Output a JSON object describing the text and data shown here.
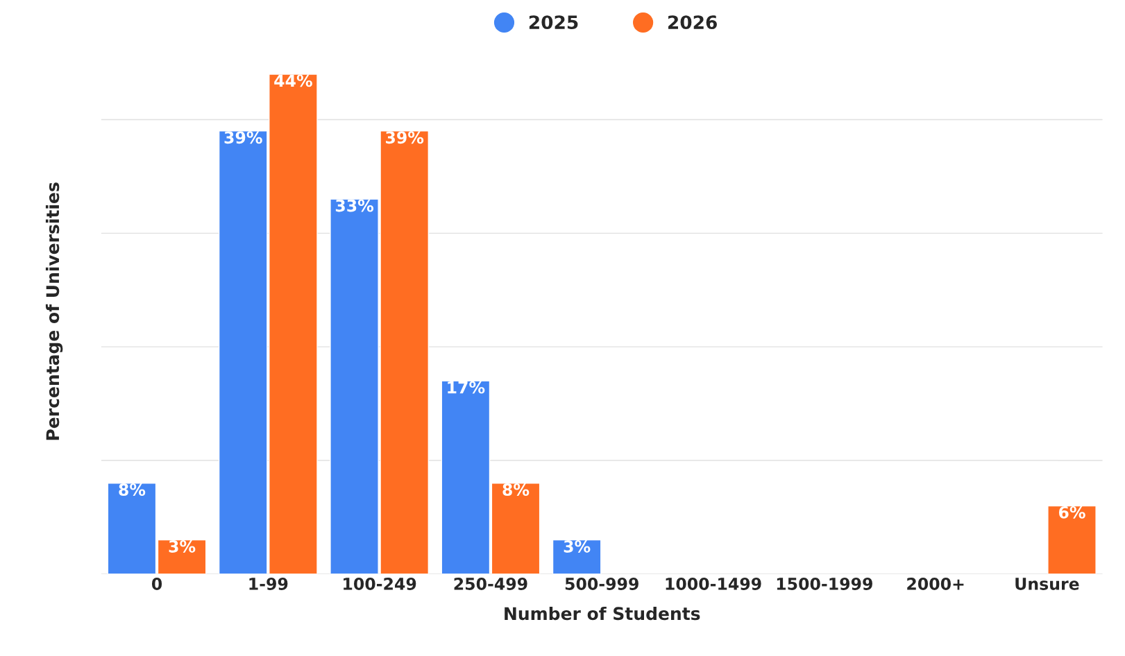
{
  "chart_data": {
    "type": "bar",
    "xlabel": "Number of Students",
    "ylabel": "Percentage of Universities",
    "categories": [
      "0",
      "1-99",
      "100-249",
      "250-499",
      "500-999",
      "1000-1499",
      "1500-1999",
      "2000+",
      "Unsure"
    ],
    "series": [
      {
        "name": "2025",
        "color": "#4285f4",
        "values": [
          8,
          39,
          33,
          17,
          3,
          null,
          null,
          null,
          null
        ],
        "value_labels": [
          "8%",
          "39%",
          "33%",
          "17%",
          "3%",
          null,
          null,
          null,
          null
        ]
      },
      {
        "name": "2026",
        "color": "#ff6d22",
        "values": [
          3,
          44,
          39,
          8,
          null,
          null,
          null,
          null,
          6
        ],
        "value_labels": [
          "3%",
          "44%",
          "39%",
          "8%",
          null,
          null,
          null,
          null,
          "6%"
        ]
      }
    ],
    "grid": "y",
    "legend": "top",
    "tick_labels": "x"
  }
}
